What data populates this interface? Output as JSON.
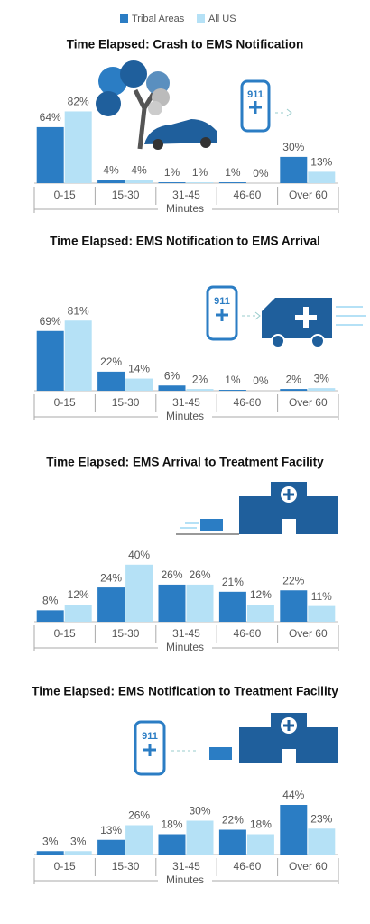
{
  "chart_data": [
    {
      "type": "bar",
      "title": "Time Elapsed: Crash to EMS Notification",
      "categories": [
        "0-15",
        "15-30",
        "31-45",
        "46-60",
        "Over 60"
      ],
      "x_label": "Minutes",
      "series": [
        {
          "name": "Tribal Areas",
          "color": "#2b7dc4",
          "values": [
            64,
            4,
            1,
            1,
            30
          ],
          "value_labels": [
            "64%",
            "4%",
            "1%",
            "1%",
            "30%"
          ]
        },
        {
          "name": "All US",
          "color": "#b5e1f6",
          "values": [
            82,
            4,
            1,
            0,
            13
          ],
          "value_labels": [
            "82%",
            "4%",
            "1%",
            "0%",
            "13%"
          ]
        }
      ]
    },
    {
      "type": "bar",
      "title": "Time Elapsed: EMS Notification to EMS Arrival",
      "categories": [
        "0-15",
        "15-30",
        "31-45",
        "46-60",
        "Over 60"
      ],
      "x_label": "Minutes",
      "series": [
        {
          "name": "Tribal Areas",
          "color": "#2b7dc4",
          "values": [
            69,
            22,
            6,
            1,
            2
          ],
          "value_labels": [
            "69%",
            "22%",
            "6%",
            "1%",
            "2%"
          ]
        },
        {
          "name": "All US",
          "color": "#b5e1f6",
          "values": [
            81,
            14,
            2,
            0,
            3
          ],
          "value_labels": [
            "81%",
            "14%",
            "2%",
            "0%",
            "3%"
          ]
        }
      ]
    },
    {
      "type": "bar",
      "title": "Time Elapsed: EMS Arrival to Treatment Facility",
      "categories": [
        "0-15",
        "15-30",
        "31-45",
        "46-60",
        "Over 60"
      ],
      "x_label": "Minutes",
      "series": [
        {
          "name": "Tribal Areas",
          "color": "#2b7dc4",
          "values": [
            8,
            24,
            26,
            21,
            22
          ],
          "value_labels": [
            "8%",
            "24%",
            "26%",
            "21%",
            "22%"
          ]
        },
        {
          "name": "All US",
          "color": "#b5e1f6",
          "values": [
            12,
            40,
            26,
            12,
            11
          ],
          "value_labels": [
            "12%",
            "40%",
            "26%",
            "12%",
            "11%"
          ]
        }
      ]
    },
    {
      "type": "bar",
      "title": "Time Elapsed: EMS Notification to Treatment Facility",
      "categories": [
        "0-15",
        "15-30",
        "31-45",
        "46-60",
        "Over 60"
      ],
      "x_label": "Minutes",
      "series": [
        {
          "name": "Tribal Areas",
          "color": "#2b7dc4",
          "values": [
            3,
            13,
            18,
            22,
            44
          ],
          "value_labels": [
            "3%",
            "13%",
            "18%",
            "22%",
            "44%"
          ]
        },
        {
          "name": "All US",
          "color": "#b5e1f6",
          "values": [
            3,
            26,
            30,
            18,
            23
          ],
          "value_labels": [
            "3%",
            "26%",
            "30%",
            "18%",
            "23%"
          ]
        }
      ]
    }
  ]
}
